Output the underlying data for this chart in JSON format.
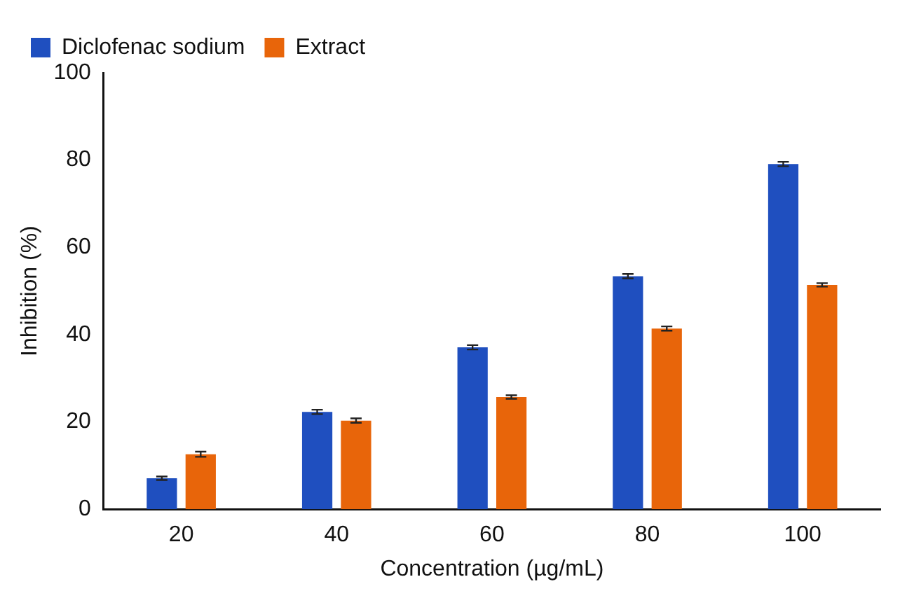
{
  "chart_data": {
    "type": "bar",
    "xlabel": "Concentration (µg/mL)",
    "ylabel": "Inhibition (%)",
    "categories": [
      "20",
      "40",
      "60",
      "80",
      "100"
    ],
    "series": [
      {
        "name": "Diclofenac sodium",
        "color": "#1f4fbf",
        "values": [
          7.1,
          22.3,
          37.1,
          53.4,
          79.1
        ],
        "errors": [
          0.4,
          0.5,
          0.5,
          0.5,
          0.5
        ]
      },
      {
        "name": "Extract",
        "color": "#e8650a",
        "values": [
          12.6,
          20.3,
          25.7,
          41.4,
          51.4
        ],
        "errors": [
          0.6,
          0.5,
          0.4,
          0.5,
          0.4
        ]
      }
    ],
    "ylim": [
      0,
      100
    ],
    "yticks": [
      0,
      20,
      40,
      60,
      80,
      100
    ],
    "grid": false,
    "legend": "top left"
  }
}
